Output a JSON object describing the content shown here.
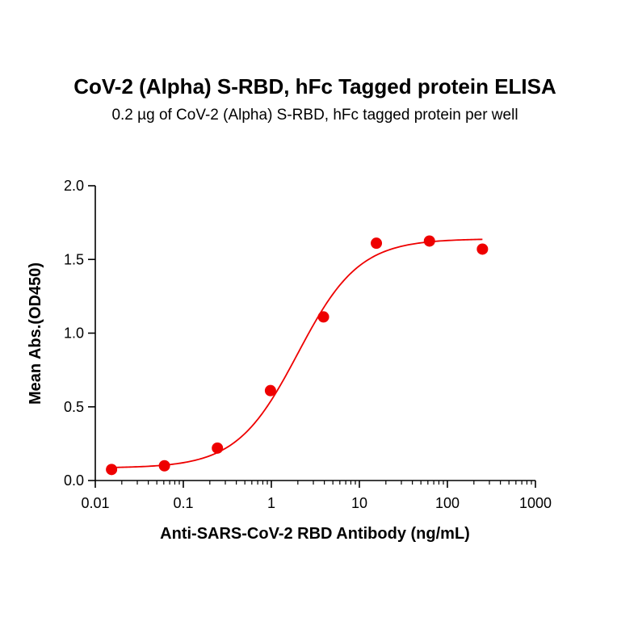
{
  "chart_data": {
    "type": "scatter",
    "title": "CoV-2 (Alpha) S-RBD, hFc Tagged protein ELISA",
    "subtitle": "0.2 µg of CoV-2 (Alpha) S-RBD, hFc tagged protein per well",
    "xlabel": "Anti-SARS-CoV-2 RBD Antibody (ng/mL)",
    "ylabel": "Mean Abs.(OD450)",
    "x_scale": "log",
    "xlim": [
      0.01,
      1000
    ],
    "ylim": [
      0,
      2.0
    ],
    "x_ticks": [
      "0.01",
      "0.1",
      "1",
      "10",
      "100",
      "1000"
    ],
    "y_ticks": [
      "0.0",
      "0.5",
      "1.0",
      "1.5",
      "2.0"
    ],
    "grid": false,
    "colors": {
      "series": "#ee0000",
      "axis": "#000000"
    },
    "series": [
      {
        "x": [
          0.0153,
          0.061,
          0.244,
          0.977,
          3.91,
          15.6,
          62.5,
          250
        ],
        "y": [
          0.075,
          0.1,
          0.22,
          0.61,
          1.11,
          1.61,
          1.625,
          1.57
        ],
        "fit": "4PL",
        "fit_params": {
          "bottom": 0.085,
          "top": 1.64,
          "ec50": 2.0,
          "hill": 1.25
        }
      }
    ]
  }
}
